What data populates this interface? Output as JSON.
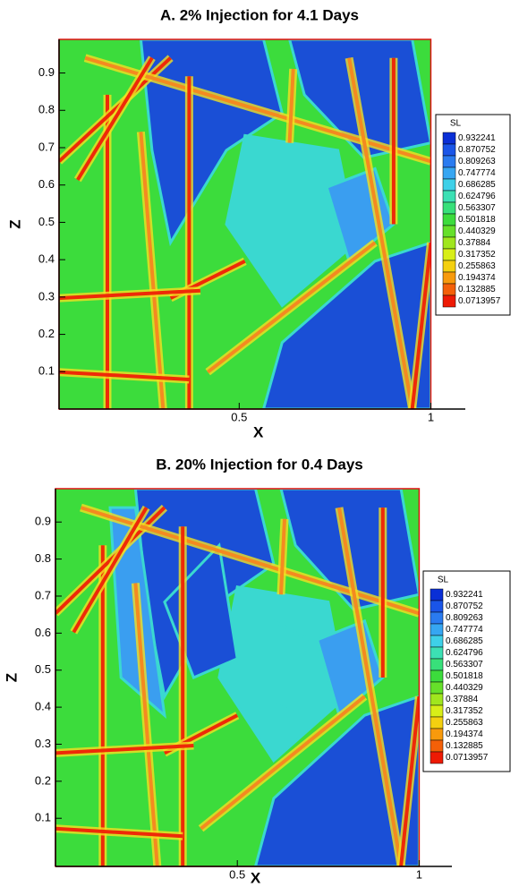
{
  "chart_data": [
    {
      "type": "contour",
      "title": "A. 2% Injection for 4.1 Days",
      "x_label": "X",
      "y_label": "Z",
      "xlim": [
        0.03,
        1.09
      ],
      "ylim": [
        0,
        0.99
      ],
      "xticks": [
        0.5,
        1
      ],
      "yticks": [
        0.1,
        0.2,
        0.3,
        0.4,
        0.5,
        0.6,
        0.7,
        0.8,
        0.9
      ],
      "legend_title": "SL",
      "legend_levels": [
        0.932241,
        0.870752,
        0.809263,
        0.747774,
        0.686285,
        0.624796,
        0.563307,
        0.501818,
        0.440329,
        0.37884,
        0.317352,
        0.255863,
        0.194374,
        0.132885,
        0.0713957
      ],
      "legend_colors": [
        "#0a2fd6",
        "#1a55e8",
        "#2a7bf0",
        "#36a6f2",
        "#3ed0e8",
        "#3ce0b4",
        "#38e07a",
        "#3cdc3c",
        "#66e02a",
        "#a0e61e",
        "#d8ee18",
        "#f4d010",
        "#f89a0c",
        "#f46008",
        "#ee1a04"
      ]
    },
    {
      "type": "contour",
      "title": "B. 20% Injection for 0.4 Days",
      "x_label": "X",
      "y_label": "Z",
      "xlim": [
        0,
        1.09
      ],
      "ylim": [
        -0.03,
        0.99
      ],
      "xticks": [
        0.5,
        1
      ],
      "yticks": [
        0.1,
        0.2,
        0.3,
        0.4,
        0.5,
        0.6,
        0.7,
        0.8,
        0.9
      ],
      "legend_title": "SL",
      "legend_levels": [
        0.932241,
        0.870752,
        0.809263,
        0.747774,
        0.686285,
        0.624796,
        0.563307,
        0.501818,
        0.440329,
        0.37884,
        0.317352,
        0.255863,
        0.194374,
        0.132885,
        0.0713957
      ],
      "legend_colors": [
        "#0a2fd6",
        "#1a55e8",
        "#2a7bf0",
        "#36a6f2",
        "#3ed0e8",
        "#3ce0b4",
        "#38e07a",
        "#3cdc3c",
        "#66e02a",
        "#a0e61e",
        "#d8ee18",
        "#f4d010",
        "#f89a0c",
        "#f46008",
        "#ee1a04"
      ]
    }
  ]
}
